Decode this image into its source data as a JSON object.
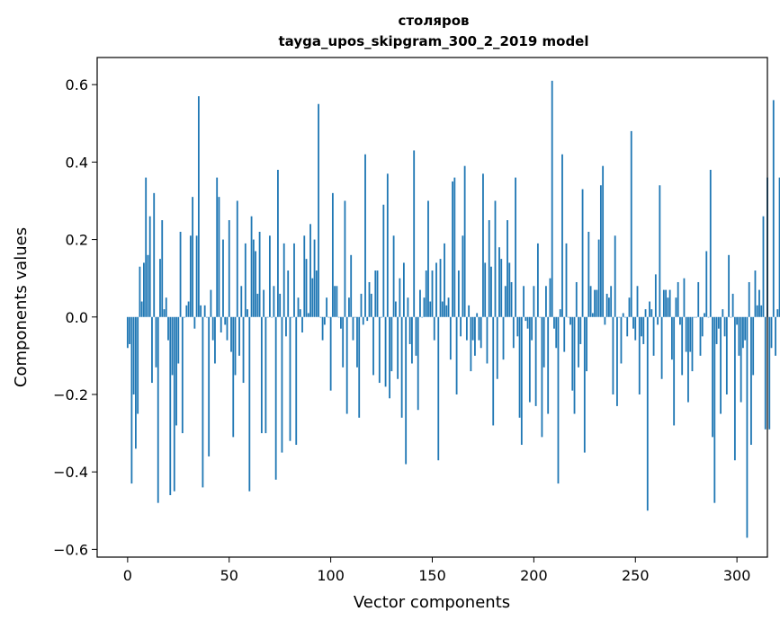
{
  "title": "столяров",
  "subtitle": "tayga_upos_skipgram_300_2_2019 model",
  "xlabel": "Vector components",
  "ylabel": "Components values",
  "chart_data": {
    "type": "bar",
    "title": "столяров",
    "subtitle": "tayga_upos_skipgram_300_2_2019 model",
    "xlabel": "Vector components",
    "ylabel": "Components values",
    "xlim": [
      -15,
      315
    ],
    "ylim": [
      -0.62,
      0.67
    ],
    "xticks": [
      0,
      50,
      100,
      150,
      200,
      250,
      300
    ],
    "yticks": [
      -0.6,
      -0.4,
      -0.2,
      0.0,
      0.2,
      0.4,
      0.6
    ],
    "ytick_labels": [
      "−0.6",
      "−0.4",
      "−0.2",
      "0.0",
      "0.2",
      "0.4",
      "0.6"
    ],
    "grid": false,
    "bar_color": "#1f77b4",
    "x_start": 0,
    "values": [
      -0.08,
      -0.07,
      -0.43,
      -0.2,
      -0.34,
      -0.25,
      0.13,
      0.04,
      0.14,
      0.36,
      0.16,
      0.26,
      -0.17,
      0.32,
      -0.13,
      -0.48,
      0.15,
      0.25,
      0.02,
      0.05,
      -0.06,
      -0.46,
      -0.15,
      -0.45,
      -0.28,
      -0.12,
      0.22,
      -0.3,
      0.0,
      0.03,
      0.04,
      0.21,
      0.31,
      -0.03,
      0.21,
      0.57,
      0.03,
      -0.44,
      0.03,
      0.0,
      -0.36,
      0.07,
      -0.06,
      -0.12,
      0.36,
      0.31,
      -0.04,
      0.2,
      -0.02,
      -0.06,
      0.25,
      -0.09,
      -0.31,
      -0.15,
      0.3,
      -0.1,
      0.08,
      -0.17,
      0.19,
      0.02,
      -0.45,
      0.26,
      0.2,
      0.17,
      0.06,
      0.22,
      -0.3,
      0.07,
      -0.3,
      0.0,
      0.21,
      0.0,
      0.08,
      -0.42,
      0.38,
      0.06,
      -0.35,
      0.19,
      -0.05,
      0.12,
      -0.32,
      0.0,
      0.19,
      -0.33,
      0.05,
      0.02,
      -0.04,
      0.21,
      0.15,
      0.01,
      0.24,
      0.1,
      0.2,
      0.12,
      0.55,
      0.0,
      -0.06,
      -0.02,
      0.05,
      0.0,
      -0.19,
      0.32,
      0.08,
      0.08,
      0.0,
      -0.03,
      -0.13,
      0.3,
      -0.25,
      0.05,
      0.16,
      -0.06,
      0.0,
      -0.13,
      -0.26,
      0.06,
      -0.02,
      0.42,
      -0.01,
      0.09,
      0.06,
      -0.15,
      0.12,
      0.12,
      -0.17,
      0.0,
      0.29,
      -0.18,
      0.37,
      -0.21,
      -0.14,
      0.21,
      0.04,
      -0.16,
      0.1,
      -0.26,
      0.14,
      -0.38,
      0.05,
      -0.07,
      -0.12,
      0.43,
      -0.1,
      -0.24,
      0.07,
      0.0,
      0.05,
      0.12,
      0.3,
      0.04,
      0.12,
      -0.06,
      0.14,
      -0.37,
      0.15,
      0.04,
      0.19,
      0.03,
      0.05,
      -0.11,
      0.35,
      0.36,
      -0.2,
      0.12,
      -0.05,
      0.21,
      0.39,
      -0.06,
      0.03,
      -0.14,
      -0.06,
      -0.1,
      0.01,
      -0.06,
      -0.08,
      0.37,
      0.14,
      -0.12,
      0.25,
      0.13,
      -0.28,
      0.3,
      -0.16,
      0.18,
      0.15,
      -0.11,
      0.08,
      0.25,
      0.14,
      0.09,
      -0.08,
      0.36,
      -0.05,
      -0.26,
      -0.33,
      0.08,
      -0.01,
      -0.03,
      -0.22,
      -0.06,
      0.08,
      -0.23,
      0.19,
      0.0,
      -0.31,
      -0.13,
      0.08,
      -0.25,
      0.1,
      0.61,
      -0.03,
      -0.08,
      -0.43,
      0.02,
      0.42,
      -0.09,
      0.19,
      0.0,
      -0.02,
      -0.19,
      -0.25,
      0.09,
      -0.13,
      -0.07,
      0.33,
      -0.35,
      -0.14,
      0.22,
      0.08,
      0.01,
      0.07,
      0.07,
      0.2,
      0.34,
      0.39,
      -0.02,
      0.06,
      0.05,
      0.08,
      -0.2,
      0.21,
      -0.23,
      0.0,
      -0.12,
      0.01,
      0.0,
      -0.05,
      0.05,
      0.48,
      -0.03,
      -0.06,
      0.08,
      -0.2,
      -0.05,
      -0.07,
      0.02,
      -0.5,
      0.04,
      0.02,
      -0.1,
      0.11,
      -0.02,
      0.34,
      -0.16,
      0.07,
      0.07,
      0.05,
      0.07,
      -0.11,
      -0.28,
      0.05,
      0.09,
      -0.02,
      -0.15,
      0.1,
      -0.09,
      -0.22,
      -0.09,
      -0.14,
      0.0,
      0.0,
      0.09,
      -0.1,
      -0.05,
      0.01,
      0.17,
      0.0,
      0.38,
      -0.31,
      -0.48,
      -0.07,
      -0.03,
      -0.25,
      0.02,
      -0.05,
      -0.2,
      0.16,
      0.0,
      0.06,
      -0.37,
      -0.02,
      -0.1,
      -0.22,
      -0.08,
      -0.06,
      -0.57,
      0.09,
      -0.33,
      -0.15,
      0.12,
      0.03,
      0.07,
      0.03,
      0.26,
      -0.29,
      0.36,
      -0.29,
      -0.08,
      0.56,
      -0.1,
      0.02,
      0.36,
      0.02,
      -0.01
    ]
  }
}
